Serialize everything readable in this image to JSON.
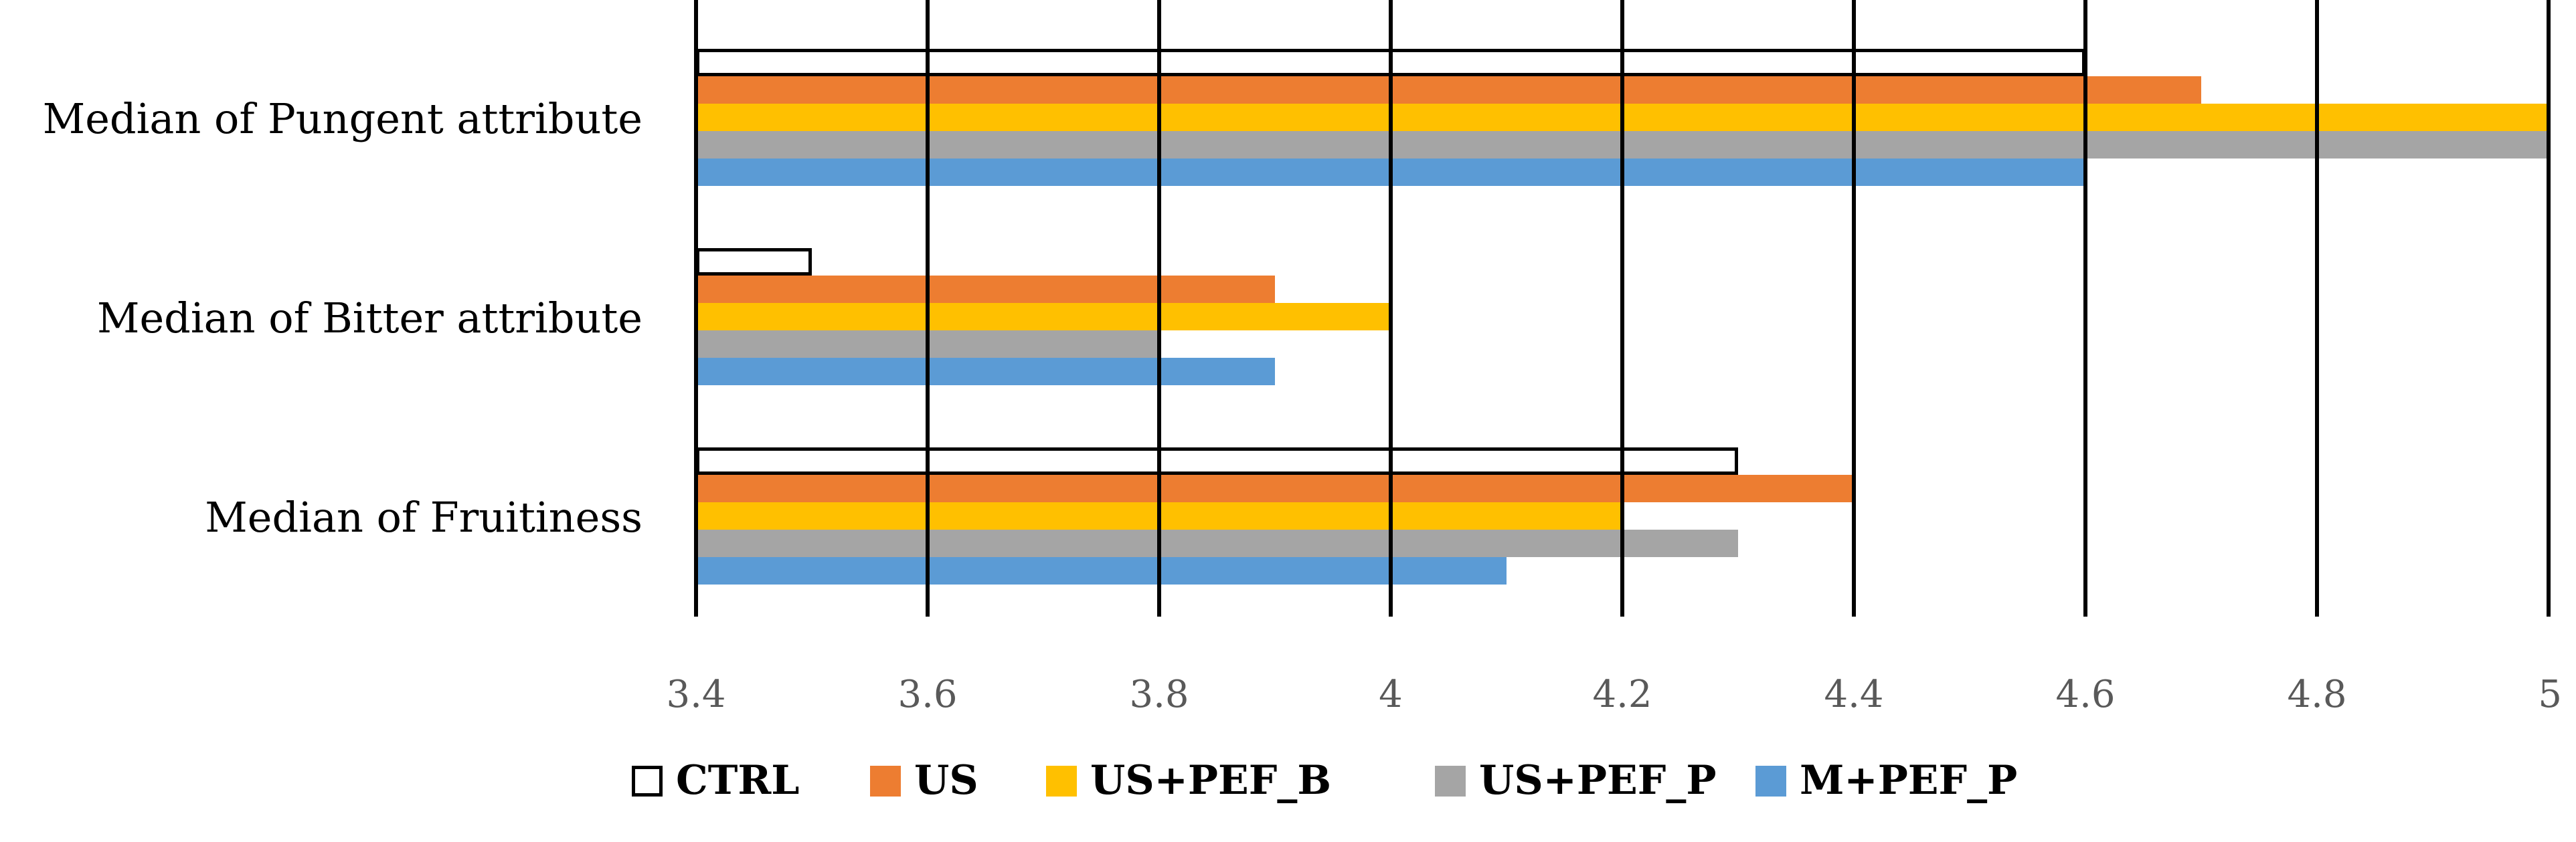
{
  "chart_data": {
    "type": "bar",
    "orientation": "horizontal",
    "categories": [
      "Median of Pungent attribute",
      "Median of Bitter attribute",
      "Median of Fruitiness"
    ],
    "series": [
      {
        "name": "CTRL",
        "color": "#ffffff",
        "stroke": "#000000",
        "values": [
          4.6,
          3.5,
          4.3
        ]
      },
      {
        "name": "US",
        "color": "#ED7D31",
        "values": [
          4.7,
          3.9,
          4.4
        ]
      },
      {
        "name": "US+PEF_B",
        "color": "#FFC000",
        "values": [
          5.0,
          4.0,
          4.2
        ]
      },
      {
        "name": "US+PEF_P",
        "color": "#A5A5A5",
        "values": [
          5.0,
          3.8,
          4.3
        ]
      },
      {
        "name": "M+PEF_P",
        "color": "#5B9BD5",
        "values": [
          4.6,
          3.9,
          4.1
        ]
      }
    ],
    "xlim": [
      3.4,
      5
    ],
    "xticks": [
      3.4,
      3.6,
      3.8,
      4,
      4.2,
      4.4,
      4.6,
      4.8,
      5
    ],
    "xtick_labels": [
      "3.4",
      "3.6",
      "3.8",
      "4",
      "4.2",
      "4.4",
      "4.6",
      "4.8",
      "5"
    ],
    "grid": "vertical major gridlines",
    "legend": "bottom",
    "title": "",
    "xlabel": "",
    "ylabel": ""
  }
}
